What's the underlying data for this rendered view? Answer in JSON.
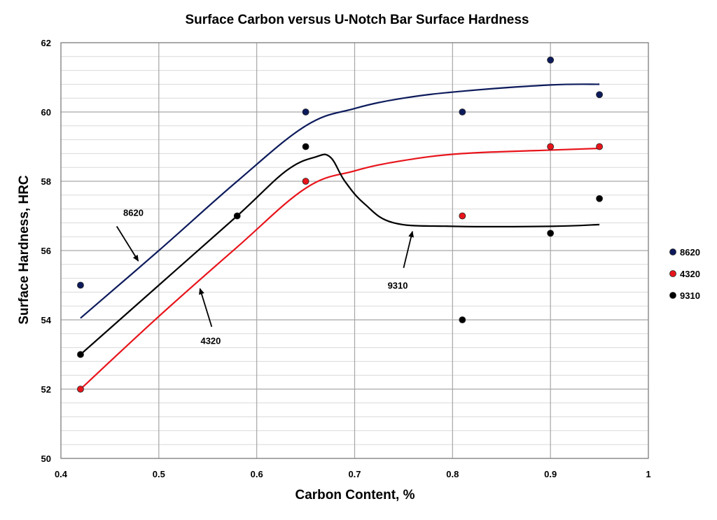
{
  "chart_data": {
    "type": "scatter",
    "title": "Surface Carbon versus U-Notch Bar Surface Hardness",
    "xlabel": "Carbon Content, %",
    "ylabel": "Surface Hardness, HRC",
    "xlim": [
      0.4,
      1.0
    ],
    "ylim": [
      50,
      62
    ],
    "x_ticks": [
      "0.4",
      "0.5",
      "0.6",
      "0.7",
      "0.8",
      "0.9",
      "1"
    ],
    "y_ticks": [
      "50",
      "52",
      "54",
      "56",
      "58",
      "60",
      "62"
    ],
    "x_tick_values": [
      0.4,
      0.5,
      0.6,
      0.7,
      0.8,
      0.9,
      1.0
    ],
    "y_tick_values": [
      50,
      52,
      54,
      56,
      58,
      60,
      62
    ],
    "grid": "major and minor",
    "legend_position": "right",
    "series": [
      {
        "name": "8620",
        "color": "#0d1b5c",
        "points": [
          [
            0.42,
            55.0
          ],
          [
            0.65,
            60.0
          ],
          [
            0.81,
            60.0
          ],
          [
            0.9,
            61.5
          ],
          [
            0.95,
            60.5
          ]
        ],
        "trend": [
          [
            0.42,
            54.05
          ],
          [
            0.5,
            56.0
          ],
          [
            0.58,
            58.0
          ],
          [
            0.65,
            59.6
          ],
          [
            0.7,
            60.1
          ],
          [
            0.75,
            60.4
          ],
          [
            0.81,
            60.6
          ],
          [
            0.9,
            60.78
          ],
          [
            0.95,
            60.8
          ]
        ]
      },
      {
        "name": "4320",
        "color": "#e8141b",
        "points": [
          [
            0.42,
            52.0
          ],
          [
            0.65,
            58.0
          ],
          [
            0.81,
            57.0
          ],
          [
            0.9,
            59.0
          ],
          [
            0.95,
            59.0
          ]
        ],
        "trend": [
          [
            0.42,
            52.0
          ],
          [
            0.5,
            54.1
          ],
          [
            0.58,
            56.1
          ],
          [
            0.65,
            57.8
          ],
          [
            0.7,
            58.3
          ],
          [
            0.75,
            58.6
          ],
          [
            0.81,
            58.8
          ],
          [
            0.9,
            58.9
          ],
          [
            0.95,
            58.95
          ]
        ]
      },
      {
        "name": "9310",
        "color": "#000000",
        "points": [
          [
            0.42,
            53.0
          ],
          [
            0.58,
            57.0
          ],
          [
            0.65,
            59.0
          ],
          [
            0.81,
            54.0
          ],
          [
            0.9,
            56.5
          ],
          [
            0.95,
            57.5
          ]
        ],
        "trend": [
          [
            0.42,
            53.0
          ],
          [
            0.5,
            55.0
          ],
          [
            0.58,
            57.0
          ],
          [
            0.63,
            58.3
          ],
          [
            0.66,
            58.7
          ],
          [
            0.675,
            58.7
          ],
          [
            0.69,
            58.0
          ],
          [
            0.71,
            57.35
          ],
          [
            0.74,
            56.8
          ],
          [
            0.8,
            56.7
          ],
          [
            0.9,
            56.7
          ],
          [
            0.95,
            56.75
          ]
        ]
      }
    ],
    "annotations": [
      {
        "text": "8620",
        "at": [
          0.474,
          57.1
        ],
        "arrow_from": [
          0.457,
          56.7
        ],
        "arrow_to": [
          0.479,
          55.7
        ]
      },
      {
        "text": "4320",
        "at": [
          0.553,
          53.4
        ],
        "arrow_from": [
          0.554,
          53.8
        ],
        "arrow_to": [
          0.542,
          54.9
        ]
      },
      {
        "text": "9310",
        "at": [
          0.744,
          55.0
        ],
        "arrow_from": [
          0.75,
          55.5
        ],
        "arrow_to": [
          0.759,
          56.55
        ]
      }
    ]
  }
}
